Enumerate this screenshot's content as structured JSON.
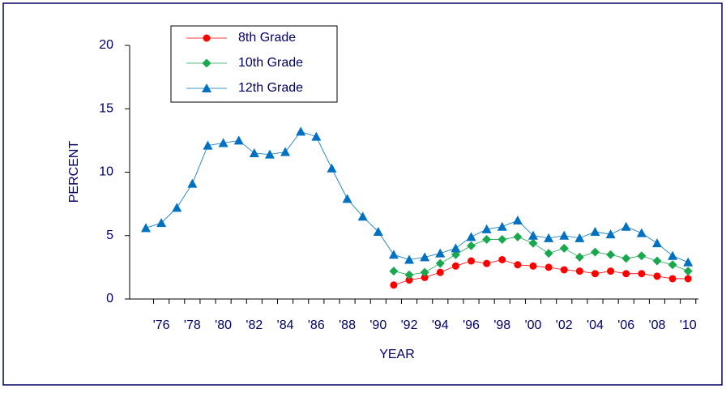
{
  "chart_data": {
    "type": "line",
    "categories": [
      null,
      "'76",
      null,
      "'78",
      null,
      "'80",
      null,
      "'82",
      null,
      "'84",
      null,
      "'86",
      null,
      "'88",
      null,
      "'90",
      null,
      "'92",
      null,
      "'94",
      null,
      "'96",
      null,
      "'98",
      null,
      "'00",
      null,
      "'02",
      null,
      "'04",
      null,
      "'06",
      null,
      "'08",
      null,
      "'10"
    ],
    "series": [
      {
        "name": "8th Grade",
        "color": "#ff0000",
        "marker": "circle",
        "values": [
          null,
          null,
          null,
          null,
          null,
          null,
          null,
          null,
          null,
          null,
          null,
          null,
          null,
          null,
          null,
          null,
          1.1,
          1.5,
          1.7,
          2.1,
          2.6,
          3.0,
          2.8,
          3.1,
          2.7,
          2.6,
          2.5,
          2.3,
          2.2,
          2.0,
          2.2,
          2.0,
          2.0,
          1.8,
          1.6,
          1.6
        ]
      },
      {
        "name": "10th Grade",
        "color": "#1aa84f",
        "marker": "diamond",
        "values": [
          null,
          null,
          null,
          null,
          null,
          null,
          null,
          null,
          null,
          null,
          null,
          null,
          null,
          null,
          null,
          null,
          2.2,
          1.9,
          2.1,
          2.8,
          3.5,
          4.2,
          4.7,
          4.7,
          4.9,
          4.4,
          3.6,
          4.0,
          3.3,
          3.7,
          3.5,
          3.2,
          3.4,
          3.0,
          2.7,
          2.2
        ]
      },
      {
        "name": "12th Grade",
        "color": "#0070c0",
        "marker": "triangle",
        "values": [
          5.6,
          6.0,
          7.2,
          9.1,
          12.1,
          12.3,
          12.5,
          11.5,
          11.4,
          11.6,
          13.2,
          12.8,
          10.3,
          7.9,
          6.5,
          5.3,
          3.5,
          3.1,
          3.3,
          3.6,
          4.0,
          4.9,
          5.5,
          5.7,
          6.2,
          5.0,
          4.8,
          5.0,
          4.8,
          5.3,
          5.1,
          5.7,
          5.2,
          4.4,
          3.4,
          2.9
        ]
      }
    ],
    "y_label": "PERCENT",
    "x_label": "YEAR",
    "ylim": [
      0,
      20
    ],
    "yticks": [
      0,
      5,
      10,
      15,
      20
    ],
    "legend": "top-left"
  }
}
